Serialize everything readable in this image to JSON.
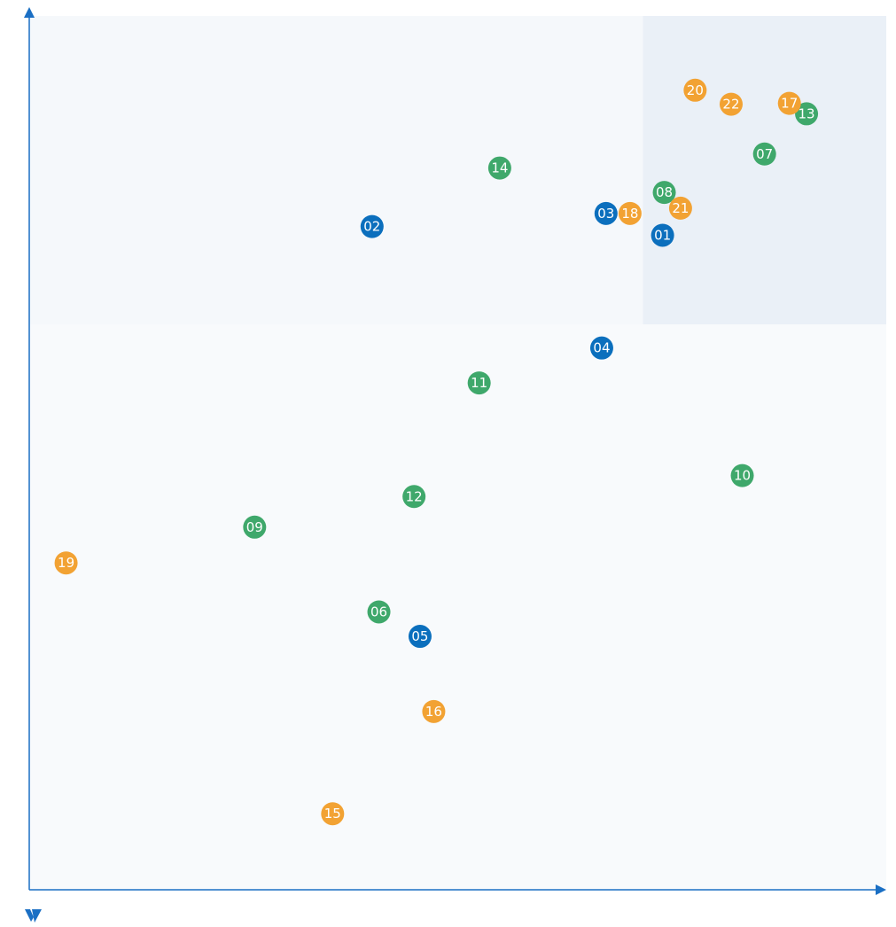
{
  "colors": {
    "blue": "#0b6fbd",
    "green": "#3fa86b",
    "orange": "#f2a233",
    "axis": "#1a6fc4",
    "quadrant_plain": "#f5f8fb",
    "quadrant_light": "#f8fafc",
    "quadrant_highlight": "#eaf0f7"
  },
  "logo": {
    "text": "V",
    "icon": "brand-logo-icon"
  },
  "chart_data": {
    "type": "scatter",
    "title": "",
    "xlabel": "",
    "ylabel": "",
    "xlim": [
      0,
      100
    ],
    "ylim": [
      0,
      100
    ],
    "quadrant_split": {
      "x": 71.6,
      "y": 64.7
    },
    "grid": false,
    "legend": "none",
    "points": [
      {
        "label": "01",
        "x": 73.9,
        "y": 74.9,
        "group": "blue"
      },
      {
        "label": "02",
        "x": 40.0,
        "y": 75.9,
        "group": "blue"
      },
      {
        "label": "03",
        "x": 67.3,
        "y": 77.4,
        "group": "blue"
      },
      {
        "label": "04",
        "x": 66.8,
        "y": 62.0,
        "group": "blue"
      },
      {
        "label": "05",
        "x": 45.6,
        "y": 29.0,
        "group": "blue"
      },
      {
        "label": "06",
        "x": 40.8,
        "y": 31.8,
        "group": "green"
      },
      {
        "label": "07",
        "x": 85.8,
        "y": 84.2,
        "group": "green"
      },
      {
        "label": "08",
        "x": 74.1,
        "y": 79.8,
        "group": "green"
      },
      {
        "label": "09",
        "x": 26.3,
        "y": 41.5,
        "group": "green"
      },
      {
        "label": "10",
        "x": 83.2,
        "y": 47.4,
        "group": "green"
      },
      {
        "label": "11",
        "x": 52.5,
        "y": 58.0,
        "group": "green"
      },
      {
        "label": "12",
        "x": 44.9,
        "y": 45.0,
        "group": "green"
      },
      {
        "label": "13",
        "x": 90.7,
        "y": 88.8,
        "group": "green"
      },
      {
        "label": "14",
        "x": 54.9,
        "y": 82.6,
        "group": "green"
      },
      {
        "label": "15",
        "x": 35.4,
        "y": 8.7,
        "group": "orange"
      },
      {
        "label": "16",
        "x": 47.2,
        "y": 20.4,
        "group": "orange"
      },
      {
        "label": "17",
        "x": 88.7,
        "y": 90.0,
        "group": "orange"
      },
      {
        "label": "18",
        "x": 70.1,
        "y": 77.4,
        "group": "orange"
      },
      {
        "label": "19",
        "x": 4.3,
        "y": 37.4,
        "group": "orange"
      },
      {
        "label": "20",
        "x": 77.7,
        "y": 91.5,
        "group": "orange"
      },
      {
        "label": "21",
        "x": 76.0,
        "y": 78.0,
        "group": "orange"
      },
      {
        "label": "22",
        "x": 81.9,
        "y": 89.9,
        "group": "orange"
      }
    ]
  }
}
